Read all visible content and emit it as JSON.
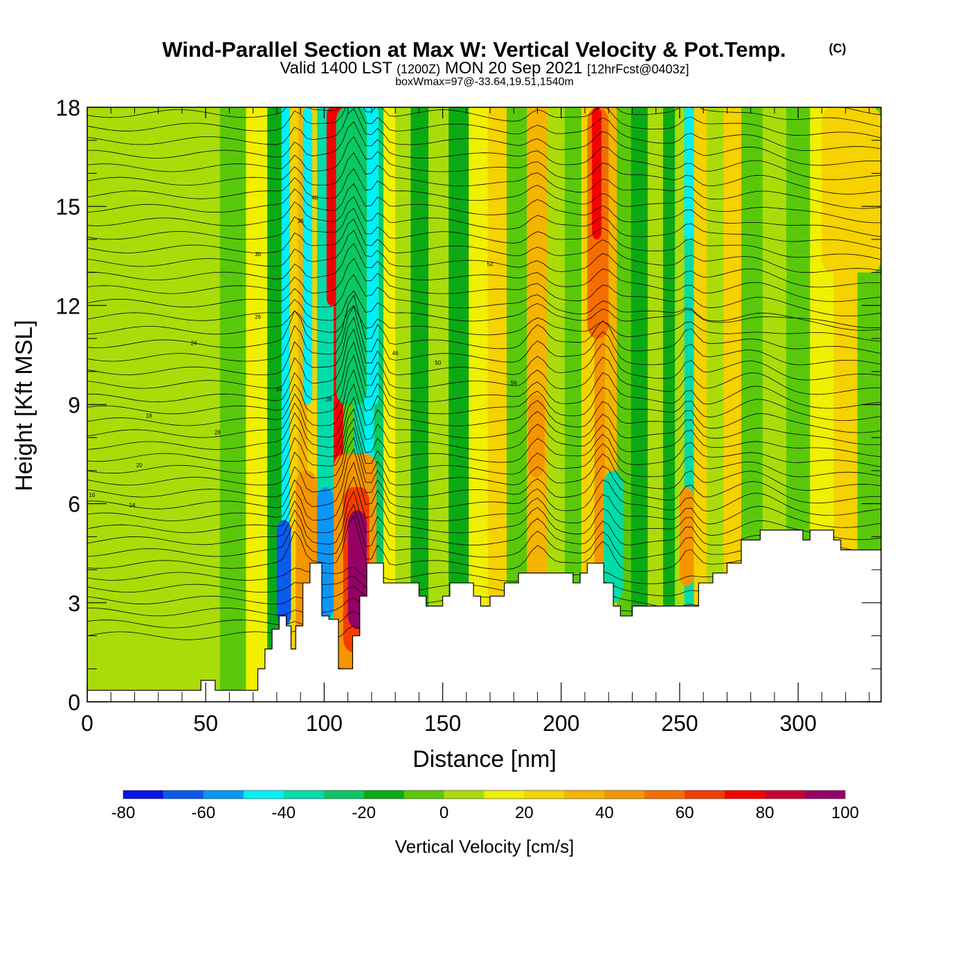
{
  "header": {
    "title": "Wind-Parallel Section at Max W: Vertical Velocity & Pot.Temp.",
    "copyright": "(C)",
    "valid_prefix": "Valid 1400 LST",
    "valid_utc": "(1200Z)",
    "valid_date": "MON 20 Sep 2021",
    "forecast": "[12hrFcst@0403z]",
    "box_info": "boxWmax=97@-33.64,19.51,1540m"
  },
  "chart_data": {
    "type": "heatmap",
    "xlabel": "Distance [nm]",
    "ylabel": "Height [Kft MSL]",
    "xlim": [
      0,
      335
    ],
    "ylim": [
      0,
      18
    ],
    "x_ticks": [
      0,
      50,
      100,
      150,
      200,
      250,
      300
    ],
    "y_ticks": [
      0,
      3,
      6,
      9,
      12,
      15,
      18
    ],
    "colorbar": {
      "label": "Vertical Velocity [cm/s]",
      "range": [
        -80,
        100
      ],
      "tick_labels": [
        "-80",
        "-60",
        "-40",
        "-20",
        "0",
        "20",
        "40",
        "60",
        "80",
        "100"
      ],
      "colors": [
        "#0a14e6",
        "#0a5af0",
        "#0a96f5",
        "#00f0f5",
        "#00dcaa",
        "#0ac864",
        "#0aaa14",
        "#5ac80a",
        "#aadc0a",
        "#f0f000",
        "#f5d200",
        "#f5b400",
        "#f59600",
        "#f56e00",
        "#f53c00",
        "#f50000",
        "#c80032",
        "#960064"
      ]
    },
    "w_columns": [
      {
        "x": 8,
        "w": 2
      },
      {
        "x": 22,
        "w": 8
      },
      {
        "x": 35,
        "w": 5
      },
      {
        "x": 50,
        "w": 0
      },
      {
        "x": 62,
        "w": -5
      },
      {
        "x": 72,
        "w": 10
      },
      {
        "x": 80,
        "w": -20
      },
      {
        "x": 84,
        "w": -45
      },
      {
        "x": 87,
        "w": 25
      },
      {
        "x": 91,
        "w": 30
      },
      {
        "x": 95,
        "w": 20
      },
      {
        "x": 99,
        "w": -35
      },
      {
        "x": 102,
        "w": -40
      },
      {
        "x": 106,
        "w": 70
      },
      {
        "x": 110,
        "w": -10
      },
      {
        "x": 115,
        "w": -35
      },
      {
        "x": 119,
        "w": -45
      },
      {
        "x": 123,
        "w": -25
      },
      {
        "x": 127,
        "w": 15
      },
      {
        "x": 133,
        "w": 2
      },
      {
        "x": 140,
        "w": -15
      },
      {
        "x": 148,
        "w": 5
      },
      {
        "x": 157,
        "w": -20
      },
      {
        "x": 165,
        "w": 10
      },
      {
        "x": 173,
        "w": 20
      },
      {
        "x": 181,
        "w": -10
      },
      {
        "x": 190,
        "w": 30
      },
      {
        "x": 198,
        "w": 5
      },
      {
        "x": 205,
        "w": -5
      },
      {
        "x": 212,
        "w": 20
      },
      {
        "x": 216,
        "w": 45
      },
      {
        "x": 221,
        "w": 35
      },
      {
        "x": 226,
        "w": -10
      },
      {
        "x": 233,
        "w": -20
      },
      {
        "x": 240,
        "w": 8
      },
      {
        "x": 246,
        "w": -15
      },
      {
        "x": 250,
        "w": 5
      },
      {
        "x": 254,
        "w": -35
      },
      {
        "x": 258,
        "w": 20
      },
      {
        "x": 265,
        "w": 5
      },
      {
        "x": 272,
        "w": 22
      },
      {
        "x": 280,
        "w": -5
      },
      {
        "x": 290,
        "w": 2
      },
      {
        "x": 300,
        "w": -8
      },
      {
        "x": 310,
        "w": 15
      },
      {
        "x": 320,
        "w": 20
      },
      {
        "x": 330,
        "w": -10
      }
    ],
    "w_cells": [
      {
        "x0": 104,
        "x1": 122,
        "y0": 1.0,
        "y1": 7.5,
        "w": 40
      },
      {
        "x0": 108,
        "x1": 119,
        "y0": 1.5,
        "y1": 6.5,
        "w": 65
      },
      {
        "x0": 110,
        "x1": 118,
        "y0": 2.2,
        "y1": 5.8,
        "w": 90
      },
      {
        "x0": 88,
        "x1": 97,
        "y0": 1.6,
        "y1": 7.0,
        "w": 40
      },
      {
        "x0": 97,
        "x1": 104,
        "y0": 2.5,
        "y1": 6.5,
        "w": -55
      },
      {
        "x0": 80,
        "x1": 86,
        "y0": 2.3,
        "y1": 5.5,
        "w": -65
      },
      {
        "x0": 101,
        "x1": 105,
        "y0": 12.0,
        "y1": 18.0,
        "w": 75
      },
      {
        "x0": 211,
        "x1": 220,
        "y0": 11.0,
        "y1": 18.0,
        "w": 55
      },
      {
        "x0": 213,
        "x1": 217,
        "y0": 14.0,
        "y1": 18.0,
        "w": 75
      },
      {
        "x0": 186,
        "x1": 193,
        "y0": 6.8,
        "y1": 9.3,
        "w": 40
      },
      {
        "x0": 218,
        "x1": 226,
        "y0": 3.0,
        "y1": 7.0,
        "w": -40
      },
      {
        "x0": 250,
        "x1": 256,
        "y0": 3.5,
        "y1": 6.5,
        "w": 40
      },
      {
        "x0": 120,
        "x1": 123,
        "y0": 9.0,
        "y1": 18.0,
        "w": -50
      },
      {
        "x0": 91,
        "x1": 95,
        "y0": 9.0,
        "y1": 18.0,
        "w": -45
      },
      {
        "x0": 252,
        "x1": 256,
        "y0": 14.0,
        "y1": 18.0,
        "w": -45
      },
      {
        "x0": 310,
        "x1": 335,
        "y0": 13.0,
        "y1": 18.0,
        "w": 22
      },
      {
        "x0": 15,
        "x1": 30,
        "y0": 10.5,
        "y1": 17.0,
        "w": 5
      },
      {
        "x0": 105,
        "x1": 118,
        "y0": 9.0,
        "y1": 18.0,
        "w": -30
      }
    ],
    "terrain": [
      [
        0,
        0.35
      ],
      [
        47,
        0.35
      ],
      [
        48,
        0.65
      ],
      [
        53,
        0.65
      ],
      [
        54,
        0.35
      ],
      [
        70,
        0.35
      ],
      [
        72,
        1.0
      ],
      [
        75,
        1.6
      ],
      [
        78,
        2.2
      ],
      [
        81,
        2.6
      ],
      [
        84,
        2.3
      ],
      [
        86,
        1.6
      ],
      [
        88,
        2.3
      ],
      [
        91,
        3.6
      ],
      [
        94,
        4.2
      ],
      [
        98,
        4.2
      ],
      [
        99,
        2.6
      ],
      [
        102,
        2.5
      ],
      [
        106,
        1.0
      ],
      [
        109,
        1.0
      ],
      [
        112,
        2.0
      ],
      [
        115,
        3.2
      ],
      [
        118,
        4.2
      ],
      [
        122,
        4.2
      ],
      [
        125,
        3.6
      ],
      [
        133,
        3.6
      ],
      [
        140,
        3.2
      ],
      [
        143,
        2.9
      ],
      [
        150,
        3.2
      ],
      [
        153,
        3.6
      ],
      [
        160,
        3.6
      ],
      [
        163,
        3.2
      ],
      [
        166,
        2.9
      ],
      [
        170,
        3.2
      ],
      [
        176,
        3.6
      ],
      [
        182,
        3.9
      ],
      [
        190,
        3.9
      ],
      [
        205,
        3.6
      ],
      [
        208,
        3.9
      ],
      [
        211,
        4.2
      ],
      [
        216,
        4.2
      ],
      [
        218,
        3.6
      ],
      [
        222,
        2.9
      ],
      [
        225,
        2.6
      ],
      [
        230,
        2.9
      ],
      [
        253,
        2.9
      ],
      [
        258,
        3.6
      ],
      [
        264,
        3.9
      ],
      [
        270,
        4.2
      ],
      [
        276,
        4.9
      ],
      [
        284,
        5.2
      ],
      [
        300,
        5.2
      ],
      [
        302,
        4.9
      ],
      [
        305,
        5.2
      ],
      [
        313,
        5.2
      ],
      [
        315,
        4.9
      ],
      [
        318,
        4.6
      ],
      [
        335,
        4.6
      ]
    ],
    "theta_base": 314,
    "theta_interval": 2,
    "theta_labels": [
      "16",
      "14",
      "20",
      "18",
      "24",
      "28",
      "26",
      "30",
      "34",
      "36",
      "40",
      "38",
      "46",
      "50",
      "52",
      "56"
    ]
  },
  "colorbar_title": "Vertical Velocity [cm/s]"
}
